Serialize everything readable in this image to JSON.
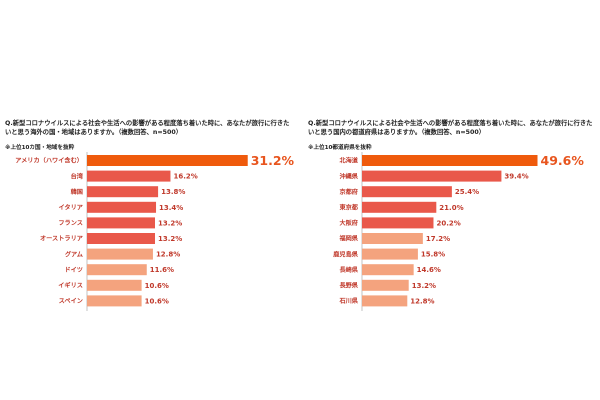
{
  "colors": {
    "top": "#ef5a0c",
    "mid": "#e9584a",
    "low": "#f4a37e",
    "label": "#c0392b",
    "top_value": "#e8551e"
  },
  "left": {
    "question": "Q.新型コロナウイルスによる社会や生活への影響がある程度落ち着いた時に、あなたが旅行に行きたいと思う海外の国・地域はありますか。（複数回答、n=500）",
    "note": "※上位10カ国・地域を抜粋",
    "chart_data": {
      "type": "bar",
      "orientation": "horizontal",
      "unit": "%",
      "categories": [
        "アメリカ（ハワイ含む）",
        "台湾",
        "韓国",
        "イタリア",
        "フランス",
        "オーストラリア",
        "グアム",
        "ドイツ",
        "イギリス",
        "スペイン"
      ],
      "values": [
        31.2,
        16.2,
        13.8,
        13.4,
        13.2,
        13.2,
        12.8,
        11.6,
        10.6,
        10.6
      ],
      "value_labels": [
        "31.2%",
        "16.2%",
        "13.8%",
        "13.4%",
        "13.2%",
        "13.2%",
        "12.8%",
        "11.6%",
        "10.6%",
        "10.6%"
      ],
      "color_groups": [
        "top",
        "mid",
        "mid",
        "mid",
        "mid",
        "mid",
        "low",
        "low",
        "low",
        "low"
      ],
      "xlim": [
        0,
        33
      ],
      "grid": false
    }
  },
  "right": {
    "question": "Q.新型コロナウイルスによる社会や生活への影響がある程度落ち着いた時に、あなたが旅行に行きたいと思う国内の都道府県はありますか。（複数回答、n=500）",
    "note": "※上位10都道府県を抜粋",
    "chart_data": {
      "type": "bar",
      "orientation": "horizontal",
      "unit": "%",
      "categories": [
        "北海道",
        "沖縄県",
        "京都府",
        "東京都",
        "大阪府",
        "福岡県",
        "鹿児島県",
        "長崎県",
        "長野県",
        "石川県"
      ],
      "values": [
        49.6,
        39.4,
        25.4,
        21.0,
        20.2,
        17.2,
        15.8,
        14.6,
        13.2,
        12.8
      ],
      "value_labels": [
        "49.6%",
        "39.4%",
        "25.4%",
        "21.0%",
        "20.2%",
        "17.2%",
        "15.8%",
        "14.6%",
        "13.2%",
        "12.8%"
      ],
      "color_groups": [
        "top",
        "mid",
        "mid",
        "mid",
        "mid",
        "low",
        "low",
        "low",
        "low",
        "low"
      ],
      "xlim": [
        0,
        52
      ],
      "grid": false
    }
  }
}
